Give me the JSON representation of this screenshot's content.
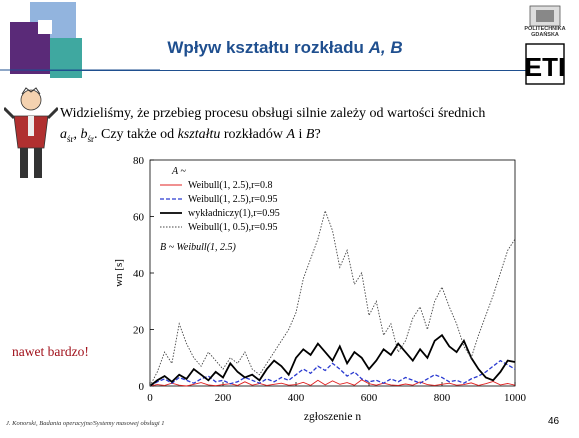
{
  "slide": {
    "title_main": "Wpływ kształtu rozkładu ",
    "title_vars": "A, B",
    "question_line1": "Widzieliśmy, że przebieg procesu obsługi silnie zależy od wartości średnich",
    "question_a": "a",
    "question_a_sub": "śr",
    "question_comma": ", ",
    "question_b": "b",
    "question_b_sub": "śr",
    "question_mid": ". Czy także od ",
    "question_italic": "kształtu",
    "question_end1": " rozkładów ",
    "question_A": "A",
    "question_and": " i ",
    "question_B": "B",
    "question_q": "?",
    "side_note": "nawet bardzo!",
    "footer_left": "J. Konorski, Badania operacyjne/Systemy masowej obsługi 1",
    "page_number": "46",
    "logo_text_1": "POLITECHNIKA",
    "logo_text_2": "GDAŃSKA",
    "logo_mark": "ETI"
  },
  "colors": {
    "title": "#1f4f8f",
    "deco_dark": "#5a2a78",
    "deco_blue": "#7fa7d8",
    "deco_teal": "#3fa8a0",
    "side_note": "#a0101a"
  },
  "chart_data": {
    "type": "line",
    "xlabel": "zgłoszenie n",
    "ylabel": "wn [s]",
    "xlim": [
      0,
      1000
    ],
    "ylim": [
      0,
      80
    ],
    "xticks": [
      0,
      200,
      400,
      600,
      800,
      1000
    ],
    "yticks": [
      0,
      20,
      40,
      60,
      80
    ],
    "legend_header_A": "A ~",
    "legend_footer_B": "B ~ Weibull(1, 2.5)",
    "series": [
      {
        "name": "Weibull(1, 2.5),r=0.8",
        "color": "#e02020",
        "style": "solid",
        "x": [
          0,
          20,
          40,
          60,
          80,
          100,
          120,
          140,
          160,
          180,
          200,
          220,
          240,
          260,
          280,
          300,
          320,
          340,
          360,
          380,
          400,
          420,
          440,
          460,
          480,
          500,
          520,
          540,
          560,
          580,
          600,
          620,
          640,
          660,
          680,
          700,
          720,
          740,
          760,
          780,
          800,
          820,
          840,
          860,
          880,
          900,
          920,
          940,
          960,
          980,
          1000
        ],
        "y": [
          0,
          0.5,
          0.2,
          1.0,
          0.3,
          0.0,
          0.6,
          1.2,
          0.4,
          0.1,
          0.5,
          0.8,
          0.2,
          1.5,
          0.3,
          0.9,
          0.2,
          0.6,
          1.0,
          0.3,
          0.5,
          1.3,
          0.2,
          2.0,
          0.4,
          1.8,
          0.6,
          1.2,
          0.3,
          2.2,
          0.8,
          0.3,
          1.0,
          0.4,
          0.2,
          0.7,
          0.3,
          1.4,
          0.5,
          0.2,
          0.6,
          1.0,
          0.3,
          0.5,
          1.1,
          0.2,
          0.8,
          1.6,
          0.4,
          0.9,
          0.3
        ]
      },
      {
        "name": "Weibull(1, 2.5),r=0.95",
        "color": "#2a3ad0",
        "style": "dashed",
        "x": [
          0,
          20,
          40,
          60,
          80,
          100,
          120,
          140,
          160,
          180,
          200,
          220,
          240,
          260,
          280,
          300,
          320,
          340,
          360,
          380,
          400,
          420,
          440,
          460,
          480,
          500,
          520,
          540,
          560,
          580,
          600,
          620,
          640,
          660,
          680,
          700,
          720,
          740,
          760,
          780,
          800,
          820,
          840,
          860,
          880,
          900,
          920,
          940,
          960,
          980,
          1000
        ],
        "y": [
          0,
          1.5,
          2.5,
          1.0,
          3.0,
          2.0,
          1.0,
          2.5,
          3.5,
          1.5,
          2.0,
          0.8,
          1.5,
          3.0,
          2.0,
          1.0,
          2.5,
          1.5,
          3.0,
          2.0,
          4.0,
          6.0,
          4.5,
          7.0,
          5.5,
          8.0,
          6.0,
          3.5,
          5.0,
          2.5,
          1.5,
          2.0,
          1.0,
          2.5,
          1.5,
          3.0,
          2.0,
          1.0,
          2.5,
          4.0,
          3.0,
          1.5,
          2.0,
          1.0,
          2.5,
          3.5,
          5.0,
          7.0,
          9.0,
          7.5,
          6.0
        ]
      },
      {
        "name": "wykładniczy(1),r=0.95",
        "color": "#000000",
        "style": "solid-bold",
        "x": [
          0,
          20,
          40,
          60,
          80,
          100,
          120,
          140,
          160,
          180,
          200,
          220,
          240,
          260,
          280,
          300,
          320,
          340,
          360,
          380,
          400,
          420,
          440,
          460,
          480,
          500,
          520,
          540,
          560,
          580,
          600,
          620,
          640,
          660,
          680,
          700,
          720,
          740,
          760,
          780,
          800,
          820,
          840,
          860,
          880,
          900,
          920,
          940,
          960,
          980,
          1000
        ],
        "y": [
          0,
          2.0,
          3.5,
          1.5,
          4.0,
          2.5,
          6.0,
          4.0,
          2.0,
          5.0,
          3.0,
          8.0,
          5.0,
          3.0,
          4.0,
          2.0,
          6.0,
          9.0,
          7.0,
          4.0,
          10.0,
          13.0,
          11.0,
          15.0,
          12.0,
          9.0,
          14.0,
          8.0,
          12.0,
          10.0,
          6.0,
          9.0,
          13.0,
          11.0,
          15.0,
          12.0,
          9.0,
          13.0,
          10.0,
          16.0,
          18.0,
          14.0,
          12.0,
          16.0,
          10.0,
          6.0,
          3.0,
          2.0,
          5.0,
          9.0,
          8.5
        ]
      },
      {
        "name": "Weibull(1, 0.5),r=0.95",
        "color": "#444444",
        "style": "dotted",
        "x": [
          0,
          20,
          40,
          60,
          80,
          100,
          120,
          140,
          160,
          180,
          200,
          220,
          240,
          260,
          280,
          300,
          320,
          340,
          360,
          380,
          400,
          420,
          440,
          460,
          480,
          500,
          520,
          540,
          560,
          580,
          600,
          620,
          640,
          660,
          680,
          700,
          720,
          740,
          760,
          780,
          800,
          820,
          840,
          860,
          880,
          900,
          920,
          940,
          960,
          980,
          1000
        ],
        "y": [
          0,
          5.0,
          12.0,
          8.0,
          22.0,
          15.0,
          10.0,
          7.0,
          12.0,
          9.0,
          6.0,
          10.0,
          8.0,
          12.0,
          6.0,
          4.0,
          8.0,
          12.0,
          16.0,
          20.0,
          26.0,
          38.0,
          45.0,
          52.0,
          62.0,
          55.0,
          42.0,
          48.0,
          36.0,
          40.0,
          25.0,
          30.0,
          18.0,
          22.0,
          12.0,
          16.0,
          24.0,
          28.0,
          20.0,
          30.0,
          35.0,
          28.0,
          22.0,
          14.0,
          10.0,
          18.0,
          25.0,
          32.0,
          40.0,
          48.0,
          52.0
        ]
      }
    ]
  }
}
